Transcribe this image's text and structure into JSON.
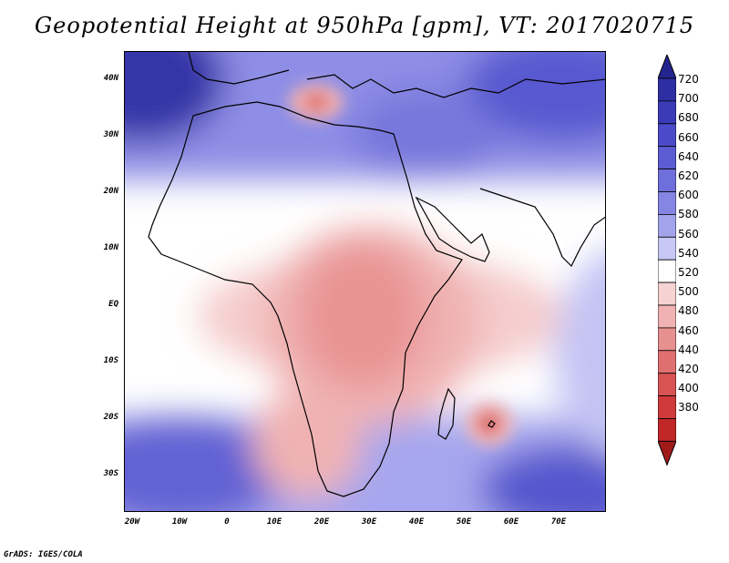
{
  "title": "Geopotential Height at 950hPa [gpm], VT: 2017020715",
  "credit": "GrADS: IGES/COLA",
  "lat_labels": [
    "40N",
    "30N",
    "20N",
    "10N",
    "EQ",
    "10S",
    "20S",
    "30S"
  ],
  "lon_labels": [
    "20W",
    "10W",
    "0",
    "10E",
    "20E",
    "30E",
    "40E",
    "50E",
    "60E",
    "70E"
  ],
  "colorbar": {
    "levels": [
      "720",
      "700",
      "680",
      "660",
      "640",
      "620",
      "600",
      "580",
      "560",
      "540",
      "520",
      "500",
      "480",
      "460",
      "440",
      "420",
      "400",
      "380"
    ],
    "colors": [
      "#24248f",
      "#2e2ea3",
      "#3b3bb8",
      "#4b4bc9",
      "#5c5cd3",
      "#6f6fdc",
      "#8585e4",
      "#a3a3ec",
      "#c7c7f5",
      "#ffffff",
      "#f7d2d2",
      "#f0b2b2",
      "#e79090",
      "#e07070",
      "#d85353",
      "#d03a3a",
      "#c22727",
      "#a11a1a"
    ]
  }
}
